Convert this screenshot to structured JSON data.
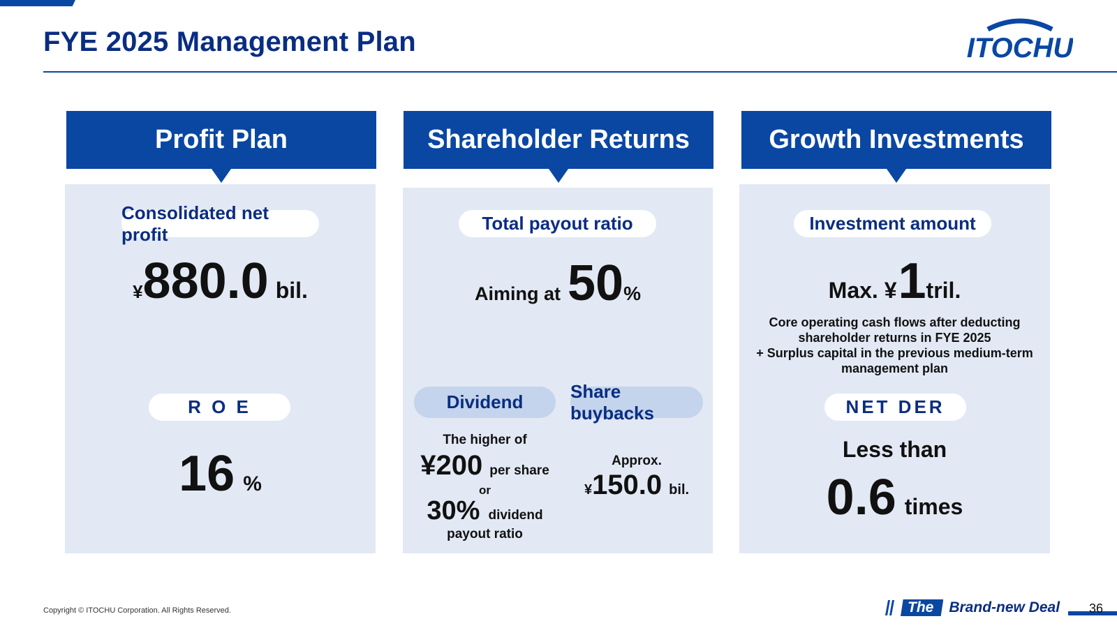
{
  "page": {
    "title": "FYE 2025 Management Plan",
    "page_number": "36",
    "copyright": "Copyright © ITOCHU Corporation. All Rights Reserved."
  },
  "logo": {
    "text": "ITOCHU"
  },
  "tagline": {
    "prefix": "The",
    "text": "Brand-new Deal"
  },
  "colors": {
    "brand": "#0a47a3",
    "title": "#0a2d82",
    "panel_bg": "#e2e9f4",
    "pill_blue": "#c3d4ec"
  },
  "profit_plan": {
    "header": "Profit Plan",
    "net_profit_label": "Consolidated net profit",
    "net_profit_currency": "¥",
    "net_profit_value": "880.0",
    "net_profit_unit": "bil.",
    "roe_label": "R O E",
    "roe_value": "16",
    "roe_unit": "%"
  },
  "shareholder_returns": {
    "header": "Shareholder Returns",
    "payout_label": "Total payout ratio",
    "payout_prefix": "Aiming at",
    "payout_value": "50",
    "payout_unit": "%",
    "dividend": {
      "label": "Dividend",
      "line1": "The higher of",
      "amount": "¥200",
      "amount_suffix": "per share",
      "or": "or",
      "ratio": "30%",
      "ratio_suffix": "dividend",
      "ratio_suffix2": "payout ratio"
    },
    "buybacks": {
      "label": "Share buybacks",
      "approx": "Approx.",
      "currency": "¥",
      "value": "150.0",
      "unit": "bil."
    }
  },
  "growth_investments": {
    "header": "Growth Investments",
    "investment_label": "Investment amount",
    "investment_prefix": "Max. ¥",
    "investment_value": "1",
    "investment_unit": "tril.",
    "note_line1": "Core operating cash flows after deducting",
    "note_line2": "shareholder returns in FYE 2025",
    "note_line3": "+ Surplus capital in the previous medium-term",
    "note_line4": "management plan",
    "der_label": "NET DER",
    "der_prefix": "Less than",
    "der_value": "0.6",
    "der_unit": "times"
  }
}
